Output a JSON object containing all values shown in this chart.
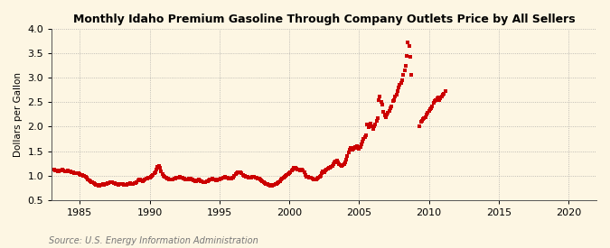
{
  "title": "Monthly Idaho Premium Gasoline Through Company Outlets Price by All Sellers",
  "ylabel": "Dollars per Gallon",
  "source": "Source: U.S. Energy Information Administration",
  "xlim": [
    1983.0,
    2022.0
  ],
  "ylim": [
    0.5,
    4.0
  ],
  "yticks": [
    0.5,
    1.0,
    1.5,
    2.0,
    2.5,
    3.0,
    3.5,
    4.0
  ],
  "xticks": [
    1985,
    1990,
    1995,
    2000,
    2005,
    2010,
    2015,
    2020
  ],
  "background_color": "#fdf6e3",
  "marker_color": "#cc0000",
  "data": [
    [
      1983.08,
      1.12
    ],
    [
      1983.17,
      1.13
    ],
    [
      1983.25,
      1.11
    ],
    [
      1983.33,
      1.1
    ],
    [
      1983.42,
      1.09
    ],
    [
      1983.5,
      1.08
    ],
    [
      1983.58,
      1.1
    ],
    [
      1983.67,
      1.11
    ],
    [
      1983.75,
      1.12
    ],
    [
      1983.83,
      1.1
    ],
    [
      1983.92,
      1.09
    ],
    [
      1984.0,
      1.08
    ],
    [
      1984.08,
      1.09
    ],
    [
      1984.17,
      1.1
    ],
    [
      1984.25,
      1.09
    ],
    [
      1984.33,
      1.08
    ],
    [
      1984.42,
      1.07
    ],
    [
      1984.5,
      1.06
    ],
    [
      1984.58,
      1.05
    ],
    [
      1984.67,
      1.04
    ],
    [
      1984.75,
      1.05
    ],
    [
      1984.83,
      1.05
    ],
    [
      1984.92,
      1.04
    ],
    [
      1985.0,
      1.03
    ],
    [
      1985.08,
      1.02
    ],
    [
      1985.17,
      1.01
    ],
    [
      1985.25,
      1.0
    ],
    [
      1985.33,
      0.99
    ],
    [
      1985.42,
      0.97
    ],
    [
      1985.5,
      0.95
    ],
    [
      1985.58,
      0.92
    ],
    [
      1985.67,
      0.9
    ],
    [
      1985.75,
      0.88
    ],
    [
      1985.83,
      0.87
    ],
    [
      1985.92,
      0.86
    ],
    [
      1986.0,
      0.84
    ],
    [
      1986.08,
      0.82
    ],
    [
      1986.17,
      0.81
    ],
    [
      1986.25,
      0.8
    ],
    [
      1986.33,
      0.79
    ],
    [
      1986.42,
      0.79
    ],
    [
      1986.5,
      0.8
    ],
    [
      1986.58,
      0.81
    ],
    [
      1986.67,
      0.82
    ],
    [
      1986.75,
      0.81
    ],
    [
      1986.83,
      0.82
    ],
    [
      1986.92,
      0.83
    ],
    [
      1987.0,
      0.84
    ],
    [
      1987.08,
      0.85
    ],
    [
      1987.17,
      0.86
    ],
    [
      1987.25,
      0.87
    ],
    [
      1987.33,
      0.86
    ],
    [
      1987.42,
      0.85
    ],
    [
      1987.5,
      0.84
    ],
    [
      1987.58,
      0.83
    ],
    [
      1987.67,
      0.82
    ],
    [
      1987.75,
      0.81
    ],
    [
      1987.83,
      0.82
    ],
    [
      1987.92,
      0.83
    ],
    [
      1988.0,
      0.83
    ],
    [
      1988.08,
      0.82
    ],
    [
      1988.17,
      0.81
    ],
    [
      1988.25,
      0.8
    ],
    [
      1988.33,
      0.81
    ],
    [
      1988.42,
      0.82
    ],
    [
      1988.5,
      0.83
    ],
    [
      1988.58,
      0.84
    ],
    [
      1988.67,
      0.83
    ],
    [
      1988.75,
      0.82
    ],
    [
      1988.83,
      0.83
    ],
    [
      1988.92,
      0.84
    ],
    [
      1989.0,
      0.85
    ],
    [
      1989.08,
      0.87
    ],
    [
      1989.17,
      0.9
    ],
    [
      1989.25,
      0.92
    ],
    [
      1989.33,
      0.91
    ],
    [
      1989.42,
      0.9
    ],
    [
      1989.5,
      0.89
    ],
    [
      1989.58,
      0.9
    ],
    [
      1989.67,
      0.92
    ],
    [
      1989.75,
      0.93
    ],
    [
      1989.83,
      0.94
    ],
    [
      1989.92,
      0.95
    ],
    [
      1990.0,
      0.96
    ],
    [
      1990.08,
      0.97
    ],
    [
      1990.17,
      0.99
    ],
    [
      1990.25,
      1.01
    ],
    [
      1990.33,
      1.04
    ],
    [
      1990.42,
      1.07
    ],
    [
      1990.5,
      1.12
    ],
    [
      1990.58,
      1.18
    ],
    [
      1990.67,
      1.2
    ],
    [
      1990.75,
      1.15
    ],
    [
      1990.83,
      1.08
    ],
    [
      1990.92,
      1.03
    ],
    [
      1991.0,
      0.99
    ],
    [
      1991.08,
      0.97
    ],
    [
      1991.17,
      0.95
    ],
    [
      1991.25,
      0.94
    ],
    [
      1991.33,
      0.93
    ],
    [
      1991.42,
      0.92
    ],
    [
      1991.5,
      0.91
    ],
    [
      1991.58,
      0.91
    ],
    [
      1991.67,
      0.92
    ],
    [
      1991.75,
      0.93
    ],
    [
      1991.83,
      0.94
    ],
    [
      1991.92,
      0.95
    ],
    [
      1992.0,
      0.95
    ],
    [
      1992.08,
      0.96
    ],
    [
      1992.17,
      0.97
    ],
    [
      1992.25,
      0.96
    ],
    [
      1992.33,
      0.95
    ],
    [
      1992.42,
      0.94
    ],
    [
      1992.5,
      0.93
    ],
    [
      1992.58,
      0.92
    ],
    [
      1992.67,
      0.92
    ],
    [
      1992.75,
      0.92
    ],
    [
      1992.83,
      0.93
    ],
    [
      1992.92,
      0.93
    ],
    [
      1993.0,
      0.92
    ],
    [
      1993.08,
      0.91
    ],
    [
      1993.17,
      0.9
    ],
    [
      1993.25,
      0.89
    ],
    [
      1993.33,
      0.89
    ],
    [
      1993.42,
      0.9
    ],
    [
      1993.5,
      0.91
    ],
    [
      1993.58,
      0.9
    ],
    [
      1993.67,
      0.89
    ],
    [
      1993.75,
      0.88
    ],
    [
      1993.83,
      0.87
    ],
    [
      1993.92,
      0.87
    ],
    [
      1994.0,
      0.87
    ],
    [
      1994.08,
      0.88
    ],
    [
      1994.17,
      0.89
    ],
    [
      1994.25,
      0.9
    ],
    [
      1994.33,
      0.91
    ],
    [
      1994.42,
      0.92
    ],
    [
      1994.5,
      0.93
    ],
    [
      1994.58,
      0.92
    ],
    [
      1994.67,
      0.91
    ],
    [
      1994.75,
      0.9
    ],
    [
      1994.83,
      0.9
    ],
    [
      1994.92,
      0.91
    ],
    [
      1995.0,
      0.92
    ],
    [
      1995.08,
      0.93
    ],
    [
      1995.17,
      0.94
    ],
    [
      1995.25,
      0.95
    ],
    [
      1995.33,
      0.96
    ],
    [
      1995.42,
      0.97
    ],
    [
      1995.5,
      0.96
    ],
    [
      1995.58,
      0.95
    ],
    [
      1995.67,
      0.94
    ],
    [
      1995.75,
      0.93
    ],
    [
      1995.83,
      0.94
    ],
    [
      1995.92,
      0.95
    ],
    [
      1996.0,
      0.96
    ],
    [
      1996.08,
      1.0
    ],
    [
      1996.17,
      1.03
    ],
    [
      1996.25,
      1.05
    ],
    [
      1996.33,
      1.06
    ],
    [
      1996.42,
      1.07
    ],
    [
      1996.5,
      1.06
    ],
    [
      1996.58,
      1.04
    ],
    [
      1996.67,
      1.02
    ],
    [
      1996.75,
      1.0
    ],
    [
      1996.83,
      0.99
    ],
    [
      1996.92,
      0.98
    ],
    [
      1997.0,
      0.97
    ],
    [
      1997.08,
      0.96
    ],
    [
      1997.17,
      0.95
    ],
    [
      1997.25,
      0.96
    ],
    [
      1997.33,
      0.97
    ],
    [
      1997.42,
      0.98
    ],
    [
      1997.5,
      0.97
    ],
    [
      1997.58,
      0.96
    ],
    [
      1997.67,
      0.95
    ],
    [
      1997.75,
      0.94
    ],
    [
      1997.83,
      0.93
    ],
    [
      1997.92,
      0.92
    ],
    [
      1998.0,
      0.9
    ],
    [
      1998.08,
      0.88
    ],
    [
      1998.17,
      0.86
    ],
    [
      1998.25,
      0.84
    ],
    [
      1998.33,
      0.83
    ],
    [
      1998.42,
      0.82
    ],
    [
      1998.5,
      0.81
    ],
    [
      1998.58,
      0.8
    ],
    [
      1998.67,
      0.79
    ],
    [
      1998.75,
      0.79
    ],
    [
      1998.83,
      0.8
    ],
    [
      1998.92,
      0.81
    ],
    [
      1999.0,
      0.82
    ],
    [
      1999.08,
      0.83
    ],
    [
      1999.17,
      0.85
    ],
    [
      1999.25,
      0.87
    ],
    [
      1999.33,
      0.89
    ],
    [
      1999.42,
      0.91
    ],
    [
      1999.5,
      0.93
    ],
    [
      1999.58,
      0.95
    ],
    [
      1999.67,
      0.97
    ],
    [
      1999.75,
      1.0
    ],
    [
      1999.83,
      1.01
    ],
    [
      1999.92,
      1.03
    ],
    [
      2000.0,
      1.04
    ],
    [
      2000.08,
      1.07
    ],
    [
      2000.17,
      1.1
    ],
    [
      2000.25,
      1.13
    ],
    [
      2000.33,
      1.15
    ],
    [
      2000.42,
      1.16
    ],
    [
      2000.5,
      1.14
    ],
    [
      2000.58,
      1.13
    ],
    [
      2000.67,
      1.12
    ],
    [
      2000.75,
      1.11
    ],
    [
      2000.83,
      1.12
    ],
    [
      2000.92,
      1.13
    ],
    [
      2001.0,
      1.11
    ],
    [
      2001.08,
      1.06
    ],
    [
      2001.17,
      1.01
    ],
    [
      2001.25,
      0.98
    ],
    [
      2001.33,
      0.97
    ],
    [
      2001.42,
      0.96
    ],
    [
      2001.5,
      0.96
    ],
    [
      2001.58,
      0.96
    ],
    [
      2001.67,
      0.94
    ],
    [
      2001.75,
      0.92
    ],
    [
      2001.83,
      0.91
    ],
    [
      2001.92,
      0.92
    ],
    [
      2002.0,
      0.93
    ],
    [
      2002.08,
      0.95
    ],
    [
      2002.17,
      0.97
    ],
    [
      2002.25,
      1.0
    ],
    [
      2002.33,
      1.05
    ],
    [
      2002.42,
      1.08
    ],
    [
      2002.5,
      1.07
    ],
    [
      2002.58,
      1.1
    ],
    [
      2002.67,
      1.12
    ],
    [
      2002.75,
      1.14
    ],
    [
      2002.83,
      1.15
    ],
    [
      2002.92,
      1.16
    ],
    [
      2003.0,
      1.17
    ],
    [
      2003.08,
      1.2
    ],
    [
      2003.17,
      1.23
    ],
    [
      2003.25,
      1.27
    ],
    [
      2003.33,
      1.28
    ],
    [
      2003.42,
      1.3
    ],
    [
      2003.5,
      1.27
    ],
    [
      2003.58,
      1.24
    ],
    [
      2003.67,
      1.21
    ],
    [
      2003.75,
      1.19
    ],
    [
      2003.83,
      1.21
    ],
    [
      2003.92,
      1.24
    ],
    [
      2004.0,
      1.27
    ],
    [
      2004.08,
      1.32
    ],
    [
      2004.17,
      1.4
    ],
    [
      2004.25,
      1.47
    ],
    [
      2004.33,
      1.52
    ],
    [
      2004.42,
      1.56
    ],
    [
      2004.5,
      1.52
    ],
    [
      2004.58,
      1.54
    ],
    [
      2004.67,
      1.57
    ],
    [
      2004.75,
      1.59
    ],
    [
      2004.83,
      1.61
    ],
    [
      2004.92,
      1.57
    ],
    [
      2005.0,
      1.54
    ],
    [
      2005.08,
      1.59
    ],
    [
      2005.17,
      1.64
    ],
    [
      2005.25,
      1.69
    ],
    [
      2005.33,
      1.74
    ],
    [
      2005.42,
      1.78
    ],
    [
      2005.5,
      1.82
    ],
    [
      2005.58,
      2.05
    ],
    [
      2005.67,
      1.98
    ],
    [
      2005.75,
      2.02
    ],
    [
      2005.83,
      2.06
    ],
    [
      2005.92,
      2.0
    ],
    [
      2006.0,
      1.96
    ],
    [
      2006.08,
      2.0
    ],
    [
      2006.17,
      2.05
    ],
    [
      2006.25,
      2.12
    ],
    [
      2006.33,
      2.18
    ],
    [
      2006.42,
      2.55
    ],
    [
      2006.5,
      2.62
    ],
    [
      2006.58,
      2.5
    ],
    [
      2006.67,
      2.45
    ],
    [
      2006.75,
      2.3
    ],
    [
      2006.83,
      2.22
    ],
    [
      2006.92,
      2.2
    ],
    [
      2007.0,
      2.25
    ],
    [
      2007.08,
      2.28
    ],
    [
      2007.17,
      2.32
    ],
    [
      2007.25,
      2.38
    ],
    [
      2007.33,
      2.42
    ],
    [
      2007.42,
      2.52
    ],
    [
      2007.5,
      2.55
    ],
    [
      2007.58,
      2.62
    ],
    [
      2007.67,
      2.65
    ],
    [
      2007.75,
      2.72
    ],
    [
      2007.83,
      2.8
    ],
    [
      2007.92,
      2.85
    ],
    [
      2008.0,
      2.9
    ],
    [
      2008.08,
      2.95
    ],
    [
      2008.17,
      3.05
    ],
    [
      2008.25,
      3.15
    ],
    [
      2008.33,
      3.25
    ],
    [
      2008.42,
      3.45
    ],
    [
      2008.5,
      3.72
    ],
    [
      2008.58,
      3.65
    ],
    [
      2008.67,
      3.42
    ],
    [
      2008.75,
      3.05
    ],
    [
      2009.33,
      2.0
    ],
    [
      2009.42,
      2.1
    ],
    [
      2009.5,
      2.12
    ],
    [
      2009.58,
      2.15
    ],
    [
      2009.67,
      2.18
    ],
    [
      2009.75,
      2.2
    ],
    [
      2009.83,
      2.25
    ],
    [
      2009.92,
      2.28
    ],
    [
      2010.0,
      2.32
    ],
    [
      2010.08,
      2.35
    ],
    [
      2010.17,
      2.38
    ],
    [
      2010.25,
      2.42
    ],
    [
      2010.33,
      2.48
    ],
    [
      2010.42,
      2.52
    ],
    [
      2010.5,
      2.55
    ],
    [
      2010.58,
      2.58
    ],
    [
      2010.67,
      2.6
    ],
    [
      2010.75,
      2.55
    ],
    [
      2010.83,
      2.58
    ],
    [
      2010.92,
      2.62
    ],
    [
      2011.0,
      2.65
    ],
    [
      2011.08,
      2.68
    ],
    [
      2011.17,
      2.72
    ]
  ]
}
